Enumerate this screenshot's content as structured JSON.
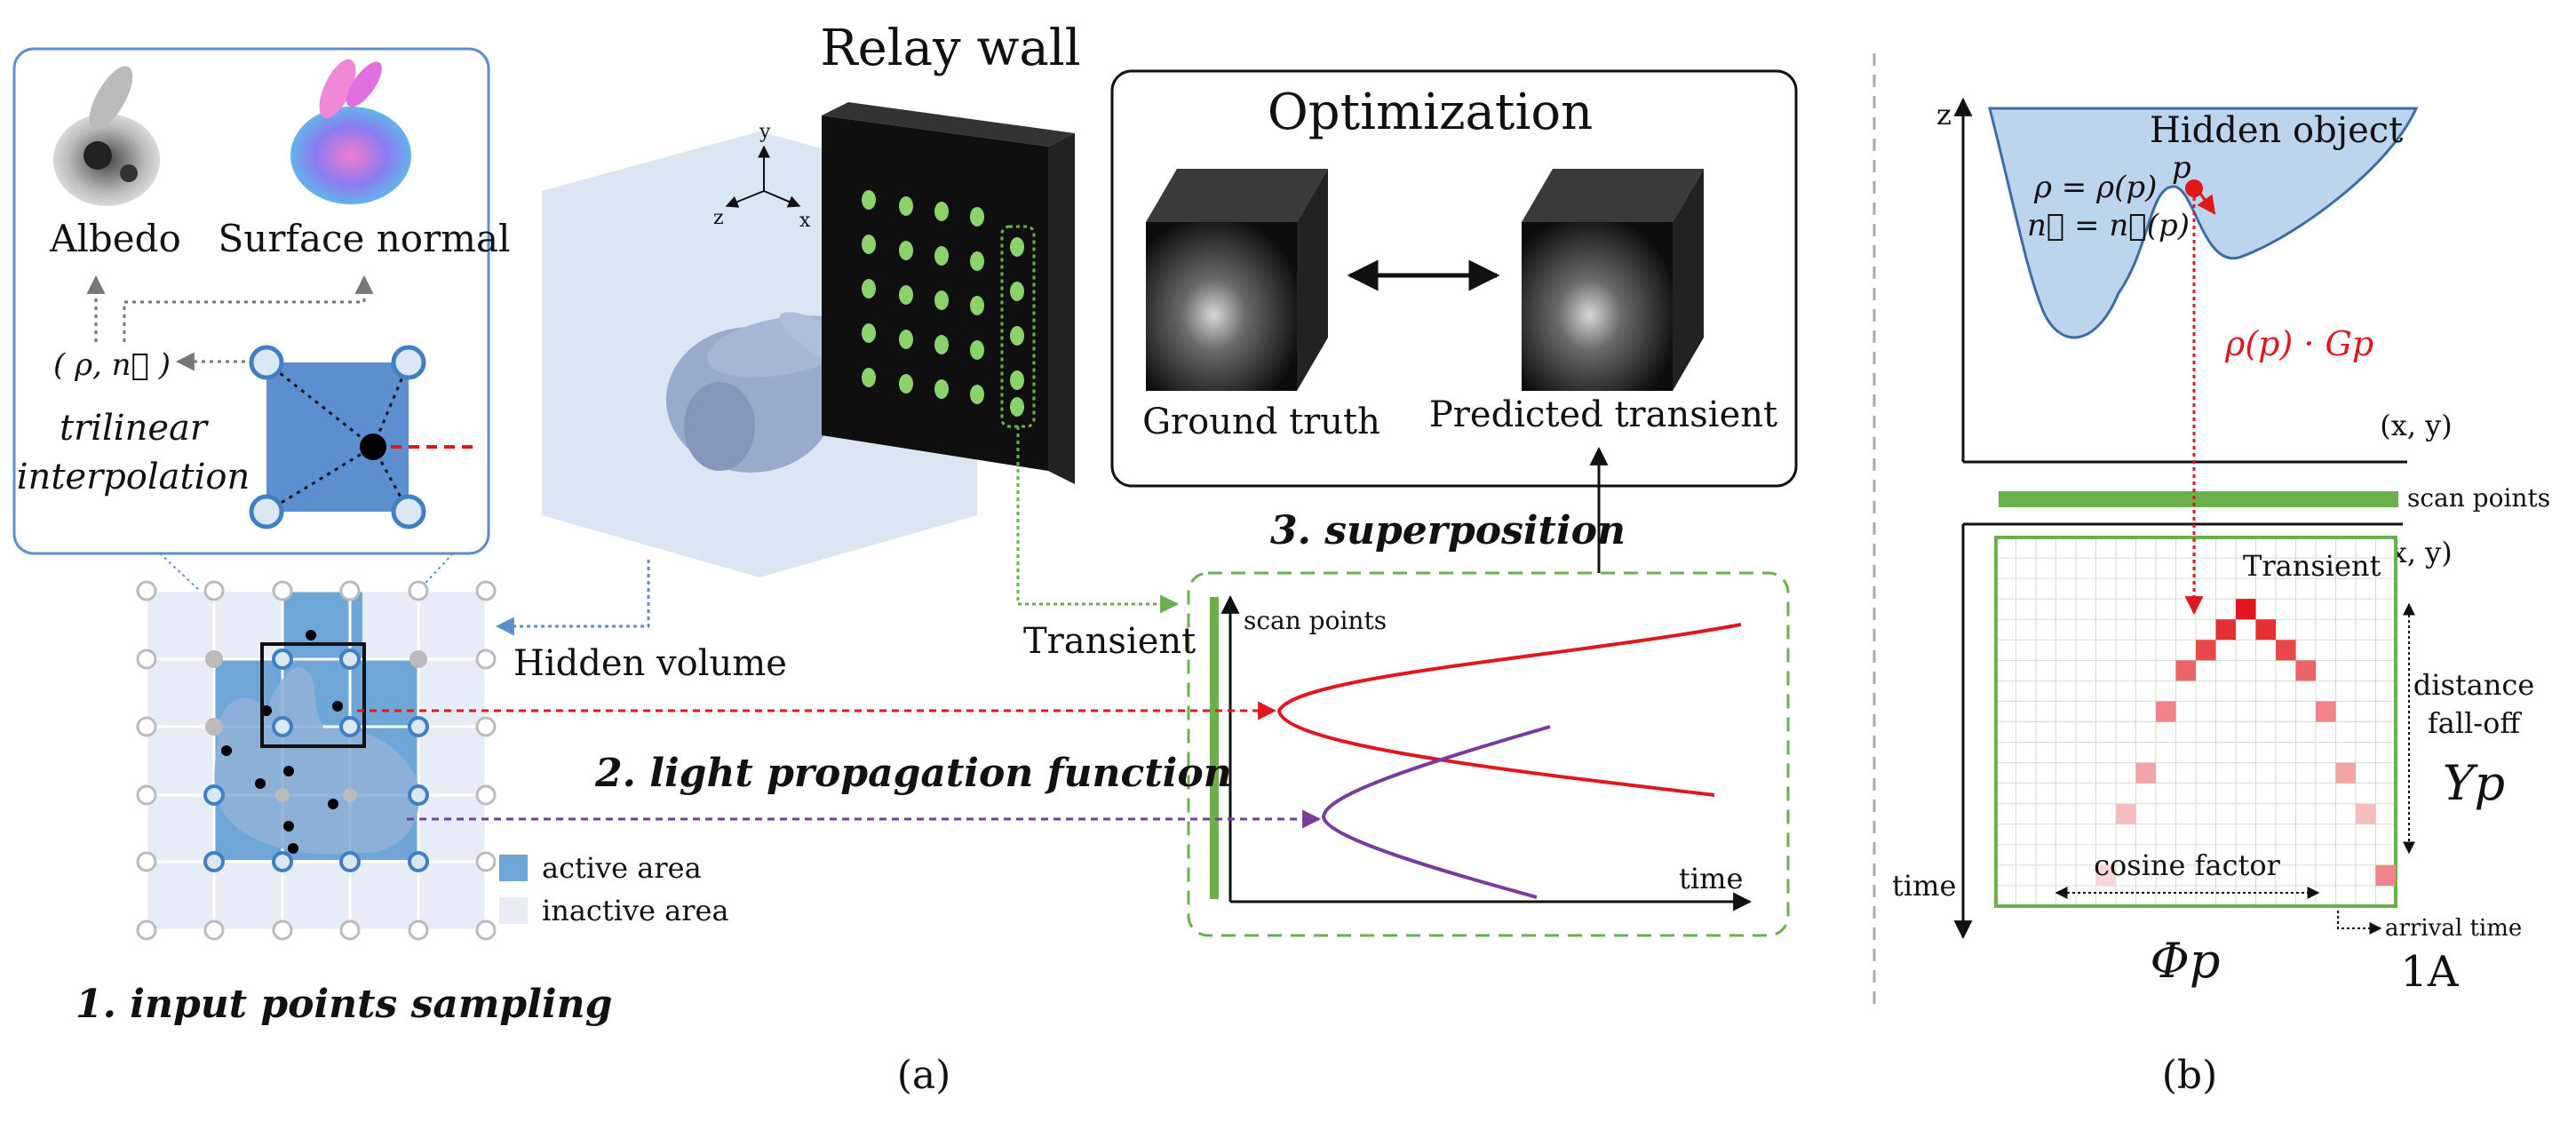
{
  "panel_a": {
    "inset_albedo": "Albedo",
    "inset_normal": "Surface normal",
    "inset_rho_n": "( ρ, n⃗ )",
    "inset_trilinear_1": "trilinear",
    "inset_trilinear_2": "interpolation",
    "relay_wall": "Relay wall",
    "axis_y": "y",
    "axis_z": "z",
    "axis_x": "x",
    "hidden_volume": "Hidden volume",
    "legend_active": "active area",
    "legend_inactive": "inactive area",
    "step1": "1. input points sampling",
    "optimization": "Optimization",
    "ground_truth": "Ground truth",
    "predicted_transient": "Predicted transient",
    "step3": "3. superposition",
    "transient": "Transient",
    "step2": "2. light propagation function",
    "scan_points": "scan points",
    "time": "time",
    "caption": "(a)"
  },
  "panel_b": {
    "z": "z",
    "hidden_object": "Hidden object",
    "p_label": "p",
    "rho_eq": "ρ = ρ(p)",
    "n_eq": "n⃗ = n⃗(p)",
    "rho_gp": "ρ(p) · Gp",
    "xy_top": "(x, y)",
    "scan_points": "scan points",
    "xy_bottom": "(x, y)",
    "transient": "Transient",
    "distance": "distance",
    "falloff": "fall-off",
    "upsilon": "Υp",
    "time": "time",
    "cosine_factor": "cosine factor",
    "arrival_time": "arrival time",
    "phi": "Φp",
    "one_a": "1A",
    "caption": "(b)"
  },
  "colors": {
    "active": "#6fa6d8",
    "inactive": "#e6edf7",
    "volume": "#dbe6f3",
    "green": "#6ab04c",
    "red": "#e0181e",
    "purple": "#7a3aa0",
    "object_fill": "#bcd5ec",
    "object_stroke": "#3d6da8"
  }
}
